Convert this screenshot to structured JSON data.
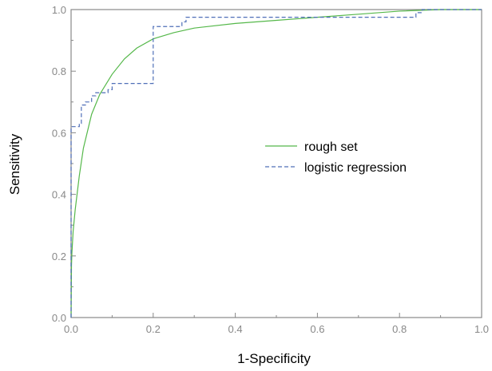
{
  "chart_data": {
    "type": "line",
    "xlabel": "1-Specificity",
    "ylabel": "Sensitivity",
    "xlim": [
      0,
      1
    ],
    "ylim": [
      0,
      1
    ],
    "x_ticks": [
      0.0,
      0.2,
      0.4,
      0.6,
      0.8,
      1.0
    ],
    "y_ticks": [
      0.0,
      0.2,
      0.4,
      0.6,
      0.8,
      1.0
    ],
    "x_tick_labels": [
      "0.0",
      "0.2",
      "0.4",
      "0.6",
      "0.8",
      "1.0"
    ],
    "y_tick_labels": [
      "0.0",
      "0.2",
      "0.4",
      "0.6",
      "0.8",
      "1.0"
    ],
    "grid": false,
    "legend_position": "center-right",
    "series": [
      {
        "name": "rough set",
        "color": "#55b84a",
        "style": "solid",
        "points": [
          [
            0.0,
            0.0
          ],
          [
            0.001,
            0.17
          ],
          [
            0.002,
            0.21
          ],
          [
            0.005,
            0.28
          ],
          [
            0.01,
            0.35
          ],
          [
            0.02,
            0.46
          ],
          [
            0.03,
            0.55
          ],
          [
            0.05,
            0.66
          ],
          [
            0.07,
            0.725
          ],
          [
            0.1,
            0.79
          ],
          [
            0.13,
            0.84
          ],
          [
            0.16,
            0.875
          ],
          [
            0.2,
            0.905
          ],
          [
            0.25,
            0.925
          ],
          [
            0.3,
            0.94
          ],
          [
            0.4,
            0.955
          ],
          [
            0.5,
            0.965
          ],
          [
            0.6,
            0.975
          ],
          [
            0.7,
            0.985
          ],
          [
            0.8,
            0.995
          ],
          [
            0.9,
            1.0
          ],
          [
            1.0,
            1.0
          ]
        ]
      },
      {
        "name": "logistic regression",
        "color": "#4f6fb8",
        "style": "dashed",
        "points": [
          [
            0.0,
            0.0
          ],
          [
            0.0,
            0.62
          ],
          [
            0.02,
            0.62
          ],
          [
            0.02,
            0.63
          ],
          [
            0.025,
            0.63
          ],
          [
            0.025,
            0.69
          ],
          [
            0.035,
            0.69
          ],
          [
            0.035,
            0.7
          ],
          [
            0.05,
            0.7
          ],
          [
            0.05,
            0.72
          ],
          [
            0.06,
            0.72
          ],
          [
            0.06,
            0.73
          ],
          [
            0.09,
            0.73
          ],
          [
            0.09,
            0.74
          ],
          [
            0.1,
            0.74
          ],
          [
            0.1,
            0.76
          ],
          [
            0.2,
            0.76
          ],
          [
            0.2,
            0.945
          ],
          [
            0.27,
            0.945
          ],
          [
            0.27,
            0.96
          ],
          [
            0.28,
            0.96
          ],
          [
            0.28,
            0.975
          ],
          [
            0.84,
            0.975
          ],
          [
            0.84,
            0.99
          ],
          [
            0.855,
            0.99
          ],
          [
            0.855,
            1.0
          ],
          [
            1.0,
            1.0
          ]
        ]
      }
    ]
  }
}
